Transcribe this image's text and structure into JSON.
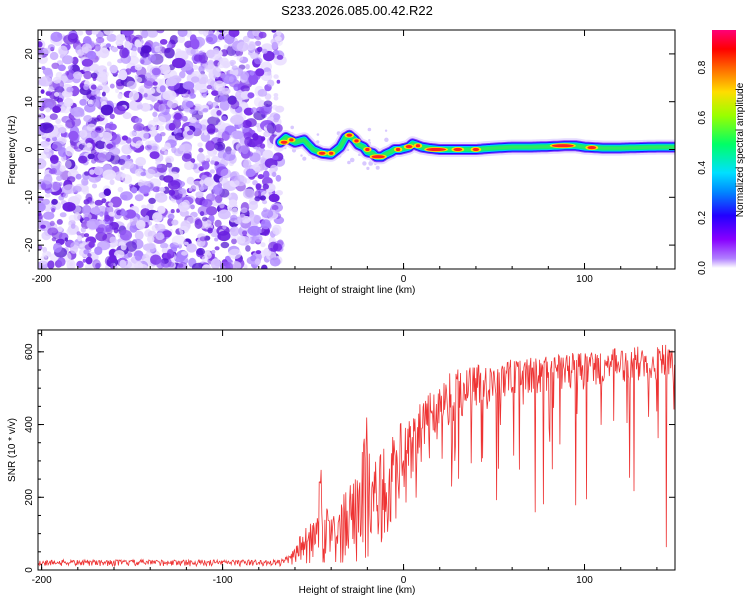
{
  "chart_data": [
    {
      "type": "heatmap",
      "title": "S233.2026.085.00.42.R22",
      "xlabel": "Height of straight line (km)",
      "ylabel": "Frequency (Hz)",
      "xlim": [
        -202,
        150
      ],
      "ylim": [
        -25,
        25
      ],
      "xticks": [
        -200,
        -100,
        0,
        100
      ],
      "xtick_labels": [
        "-200",
        "-100",
        "0",
        "100"
      ],
      "yticks": [
        -20,
        -10,
        0,
        10,
        20
      ],
      "ytick_labels": [
        "-20",
        "-10",
        "0",
        "10",
        "20"
      ],
      "noise_region_x": [
        -202,
        -68
      ],
      "ridge": {
        "x": [
          -68,
          -65,
          -60,
          -55,
          -50,
          -45,
          -40,
          -35,
          -32,
          -30,
          -27,
          -25,
          -22,
          -20,
          -17,
          -15,
          -12,
          -10,
          -7,
          -5,
          -2,
          0,
          3,
          5,
          8,
          10,
          15,
          20,
          30,
          40,
          50,
          60,
          70,
          80,
          90,
          95,
          100,
          110,
          120,
          130,
          140,
          150
        ],
        "freq": [
          1.5,
          2.5,
          1.5,
          2.0,
          0.0,
          -0.8,
          -1.0,
          0.5,
          2.5,
          3.0,
          2.0,
          1.0,
          0.5,
          -0.5,
          -0.8,
          -1.5,
          -1.5,
          -1.0,
          -0.5,
          0.0,
          0.0,
          0.2,
          0.5,
          1.2,
          0.8,
          0.5,
          0.2,
          0.0,
          0.0,
          0.0,
          0.3,
          0.5,
          0.5,
          0.6,
          0.8,
          0.8,
          0.5,
          0.3,
          0.3,
          0.4,
          0.5,
          0.5
        ]
      }
    },
    {
      "type": "line",
      "xlabel": "Height of straight line (km)",
      "ylabel": "SNR (10 * v/v)",
      "xlim": [
        -202,
        150
      ],
      "ylim": [
        0,
        660
      ],
      "xticks": [
        -200,
        -100,
        0,
        100
      ],
      "xtick_labels": [
        "-200",
        "-100",
        "0",
        "100"
      ],
      "yticks": [
        0,
        200,
        400,
        600
      ],
      "ytick_labels": [
        "0",
        "200",
        "400",
        "600"
      ],
      "series": [
        {
          "name": "SNR",
          "color": "#ee3333",
          "envelope_x": [
            -202,
            -68,
            -62,
            -55,
            -45,
            -35,
            -25,
            -21,
            -18,
            -10,
            0,
            10,
            20,
            30,
            40,
            60,
            80,
            100,
            120,
            150
          ],
          "envelope_upper": [
            28,
            28,
            45,
            120,
            160,
            200,
            260,
            440,
            300,
            340,
            420,
            460,
            520,
            560,
            570,
            580,
            590,
            600,
            610,
            630
          ],
          "envelope_lower": [
            10,
            10,
            15,
            20,
            25,
            25,
            30,
            30,
            60,
            120,
            200,
            300,
            360,
            400,
            430,
            460,
            480,
            490,
            500,
            510
          ],
          "dropout_depth": [
            0,
            0,
            0,
            5,
            5,
            10,
            10,
            10,
            20,
            40,
            60,
            120,
            150,
            200,
            250,
            300,
            350,
            400,
            450,
            500
          ]
        }
      ]
    }
  ],
  "colorbar": {
    "label": "Normalized spectral amplitude",
    "range": [
      0,
      0.95
    ],
    "ticks": [
      0.0,
      0.2,
      0.4,
      0.6,
      0.8
    ],
    "tick_labels": [
      "0.0",
      "0.2",
      "0.4",
      "0.6",
      "0.8"
    ],
    "colors": [
      "#ffffff",
      "#8800ff",
      "#0000ff",
      "#00ccff",
      "#00ff66",
      "#ccff00",
      "#ffcc00",
      "#ff2200",
      "#ff0066"
    ]
  }
}
